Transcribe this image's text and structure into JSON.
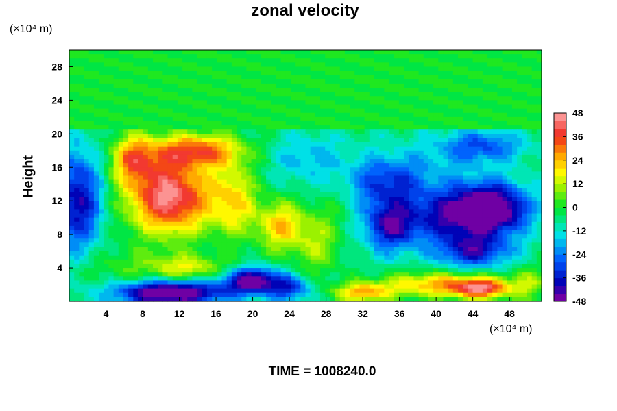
{
  "chart_data": {
    "type": "heatmap",
    "title": "zonal velocity",
    "ylabel": "Height",
    "xlabel": "",
    "x_unit": "(×10⁴ m)",
    "y_unit": "(×10⁴ m)",
    "footer": "TIME = 1008240.0",
    "xlim": [
      0,
      51.5
    ],
    "ylim": [
      0,
      30
    ],
    "x_ticks": [
      4,
      8,
      12,
      16,
      20,
      24,
      28,
      32,
      36,
      40,
      44,
      48
    ],
    "y_ticks": [
      4,
      8,
      12,
      16,
      20,
      24,
      28
    ],
    "colorbar": {
      "min": -48,
      "max": 48,
      "step": 4,
      "ticks": [
        48,
        36,
        24,
        12,
        0,
        -12,
        -24,
        -36,
        -48
      ]
    },
    "z_field": [
      {
        "x": 0,
        "y": 25,
        "sx": 60,
        "sy": 5,
        "v": 0
      },
      {
        "x": 24,
        "y": 20.7,
        "sx": 60,
        "sy": 0.25,
        "v": 10
      },
      {
        "x": 1,
        "y": 12,
        "sx": 2.5,
        "sy": 6,
        "v": -34
      },
      {
        "x": 11,
        "y": 12.5,
        "sx": 4.5,
        "sy": 4.5,
        "v": 52
      },
      {
        "x": 14,
        "y": 18,
        "sx": 5,
        "sy": 2,
        "v": 36
      },
      {
        "x": 18,
        "y": 12,
        "sx": 2.5,
        "sy": 4.5,
        "v": 24
      },
      {
        "x": 7,
        "y": 17,
        "sx": 2.5,
        "sy": 3,
        "v": 30
      },
      {
        "x": 6,
        "y": 4,
        "sx": 6,
        "sy": 2.5,
        "v": 8
      },
      {
        "x": 13,
        "y": 4,
        "sx": 4,
        "sy": 1.5,
        "v": 20
      },
      {
        "x": 11,
        "y": 1,
        "sx": 6,
        "sy": 1.5,
        "v": -50
      },
      {
        "x": 20,
        "y": 2.5,
        "sx": 3,
        "sy": 1.5,
        "v": -44
      },
      {
        "x": 24,
        "y": 1.5,
        "sx": 2.5,
        "sy": 1.5,
        "v": -24
      },
      {
        "x": 23,
        "y": 9,
        "sx": 2.5,
        "sy": 3,
        "v": 28
      },
      {
        "x": 27,
        "y": 7,
        "sx": 2.5,
        "sy": 4,
        "v": 16
      },
      {
        "x": 26,
        "y": 17,
        "sx": 4,
        "sy": 3,
        "v": -12
      },
      {
        "x": 30,
        "y": 12,
        "sx": 3,
        "sy": 4,
        "v": 4
      },
      {
        "x": 34,
        "y": 14,
        "sx": 4,
        "sy": 3,
        "v": -20
      },
      {
        "x": 35,
        "y": 9,
        "sx": 3,
        "sy": 3,
        "v": -34
      },
      {
        "x": 46,
        "y": 11,
        "sx": 4,
        "sy": 3,
        "v": -52
      },
      {
        "x": 41,
        "y": 10,
        "sx": 4,
        "sy": 3,
        "v": -26
      },
      {
        "x": 44,
        "y": 6,
        "sx": 4,
        "sy": 2,
        "v": -30
      },
      {
        "x": 45,
        "y": 18.5,
        "sx": 4.5,
        "sy": 2,
        "v": -22
      },
      {
        "x": 38,
        "y": 15,
        "sx": 6,
        "sy": 4,
        "v": -10
      },
      {
        "x": 40,
        "y": 2,
        "sx": 6,
        "sy": 1.5,
        "v": 30
      },
      {
        "x": 45,
        "y": 1.5,
        "sx": 3,
        "sy": 1.2,
        "v": 40
      },
      {
        "x": 32,
        "y": 1,
        "sx": 3,
        "sy": 1.2,
        "v": 30
      },
      {
        "x": 50,
        "y": 2,
        "sx": 2,
        "sy": 2,
        "v": 16
      }
    ]
  }
}
